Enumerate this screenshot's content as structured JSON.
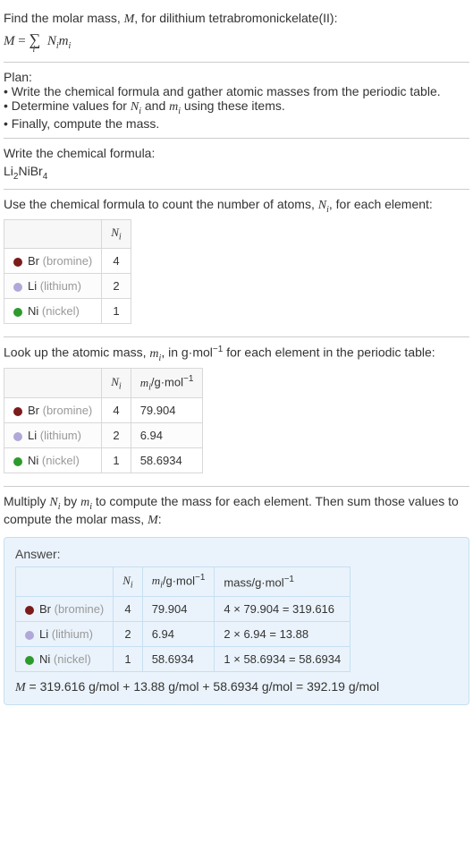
{
  "intro": {
    "line1_pre": "Find the molar mass, ",
    "line1_var": "M",
    "line1_post": ", for dilithium tetrabromonickelate(II):",
    "eq_lhs": "M",
    "eq_eq": " = ",
    "eq_rhs1": "N",
    "eq_rhs2": "m"
  },
  "plan": {
    "title": "Plan:",
    "b1_a": "• Write the chemical formula and gather atomic masses from the periodic table.",
    "b2_a": "• Determine values for ",
    "b2_b": " and ",
    "b2_c": " using these items.",
    "b3": "• Finally, compute the mass."
  },
  "writeformula": {
    "title": "Write the chemical formula:",
    "chem_li": "Li",
    "chem_li_n": "2",
    "chem_ni": "Ni",
    "chem_br": "Br",
    "chem_br_n": "4"
  },
  "count": {
    "title_a": "Use the chemical formula to count the number of atoms, ",
    "title_b": ", for each element:",
    "col_ni": "N",
    "rows": [
      {
        "color": "#7b1b1b",
        "sym": "Br",
        "name": "(bromine)",
        "n": "4"
      },
      {
        "color": "#b0a8d8",
        "sym": "Li",
        "name": "(lithium)",
        "n": "2"
      },
      {
        "color": "#2e9a2e",
        "sym": "Ni",
        "name": "(nickel)",
        "n": "1"
      }
    ]
  },
  "lookup": {
    "title_a": "Look up the atomic mass, ",
    "title_b": ", in g·mol",
    "title_c": " for each element in the periodic table:",
    "col_ni": "N",
    "col_mi_a": "m",
    "col_mi_b": "/g·mol",
    "rows": [
      {
        "color": "#7b1b1b",
        "sym": "Br",
        "name": "(bromine)",
        "n": "4",
        "m": "79.904"
      },
      {
        "color": "#b0a8d8",
        "sym": "Li",
        "name": "(lithium)",
        "n": "2",
        "m": "6.94"
      },
      {
        "color": "#2e9a2e",
        "sym": "Ni",
        "name": "(nickel)",
        "n": "1",
        "m": "58.6934"
      }
    ]
  },
  "multiply": {
    "text_a": "Multiply ",
    "text_b": " by ",
    "text_c": " to compute the mass for each element. Then sum those values to compute the molar mass, ",
    "text_d": ":"
  },
  "answer": {
    "label": "Answer:",
    "col_ni": "N",
    "col_mi_a": "m",
    "col_mi_b": "/g·mol",
    "col_mass": "mass/g·mol",
    "rows": [
      {
        "color": "#7b1b1b",
        "sym": "Br",
        "name": "(bromine)",
        "n": "4",
        "m": "79.904",
        "calc": "4 × 79.904 = 319.616"
      },
      {
        "color": "#b0a8d8",
        "sym": "Li",
        "name": "(lithium)",
        "n": "2",
        "m": "6.94",
        "calc": "2 × 6.94 = 13.88"
      },
      {
        "color": "#2e9a2e",
        "sym": "Ni",
        "name": "(nickel)",
        "n": "1",
        "m": "58.6934",
        "calc": "1 × 58.6934 = 58.6934"
      }
    ],
    "final_a": "M",
    "final_b": " = 319.616 g/mol + 13.88 g/mol + 58.6934 g/mol = 392.19 g/mol"
  }
}
